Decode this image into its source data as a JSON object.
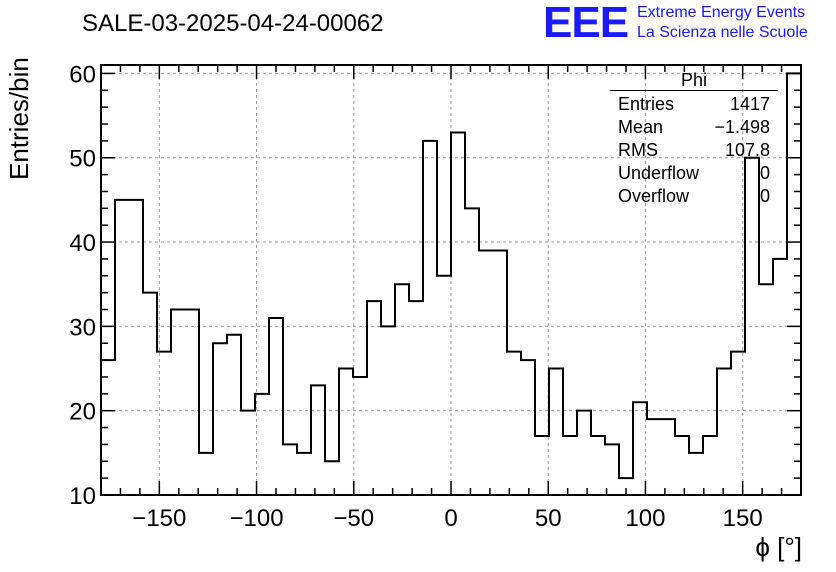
{
  "title": "SALE-03-2025-04-24-00062",
  "logo": {
    "mark": "EEE",
    "line1": "Extreme Energy Events",
    "line2": "La Scienza nelle Scuole",
    "color": "#1a1aff"
  },
  "stats_box": {
    "name": "Phi",
    "rows": [
      {
        "label": "Entries",
        "value": "1417"
      },
      {
        "label": "Mean",
        "value": "−1.498"
      },
      {
        "label": "RMS",
        "value": "107.8"
      },
      {
        "label": "Underflow",
        "value": "0"
      },
      {
        "label": "Overflow",
        "value": "0"
      }
    ]
  },
  "chart_data": {
    "type": "bar",
    "histogram": true,
    "xlabel": "ϕ [°]",
    "ylabel": "Entries/bin",
    "xlim": [
      -180,
      180
    ],
    "ylim": [
      10,
      61
    ],
    "bin_width": 7.2,
    "values": [
      26,
      45,
      45,
      34,
      27,
      32,
      32,
      15,
      28,
      29,
      20,
      22,
      31,
      16,
      15,
      23,
      14,
      25,
      24,
      33,
      30,
      35,
      33,
      52,
      36,
      53,
      44,
      39,
      39,
      27,
      26,
      17,
      25,
      17,
      20,
      17,
      16,
      12,
      21,
      19,
      19,
      17,
      15,
      17,
      25,
      27,
      50,
      35,
      38,
      60
    ],
    "xticks": [
      -150,
      -100,
      -50,
      0,
      50,
      100,
      150
    ],
    "xtick_labels": [
      "−150",
      "−100",
      "−50",
      "0",
      "50",
      "100",
      "150"
    ],
    "yticks": [
      10,
      20,
      30,
      40,
      50,
      60
    ],
    "grid": true,
    "line_color": "#000000"
  }
}
